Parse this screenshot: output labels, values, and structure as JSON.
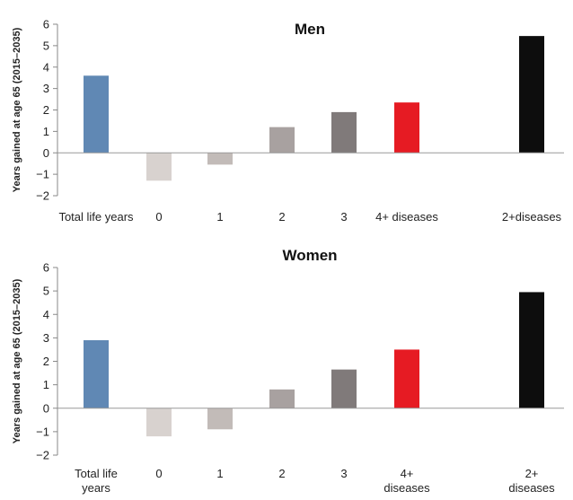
{
  "chart_data": [
    {
      "type": "bar",
      "title": "Men",
      "ylabel": "Years gained at age 65 (2015–2035)",
      "ylim": [
        -2,
        6
      ],
      "yticks": [
        -2,
        -1,
        0,
        1,
        2,
        3,
        4,
        5,
        6
      ],
      "categories": [
        [
          "Total life years"
        ],
        [
          "0"
        ],
        [
          "1"
        ],
        [
          "2"
        ],
        [
          "3"
        ],
        [
          "4+ diseases"
        ],
        [
          "2+diseases"
        ]
      ],
      "values": [
        3.6,
        -1.3,
        -0.55,
        1.2,
        1.9,
        2.35,
        5.45
      ],
      "colors": [
        "#6088b4",
        "#d8d2cf",
        "#c2bbb8",
        "#a8a1a0",
        "#807a7a",
        "#e61b23",
        "#0d0d0d"
      ]
    },
    {
      "type": "bar",
      "title": "Women",
      "ylabel": "Years gained at age 65 (2015–2035)",
      "ylim": [
        -2,
        6
      ],
      "yticks": [
        -2,
        -1,
        0,
        1,
        2,
        3,
        4,
        5,
        6
      ],
      "categories": [
        [
          "Total life",
          "years"
        ],
        [
          "0"
        ],
        [
          "1"
        ],
        [
          "2"
        ],
        [
          "3"
        ],
        [
          "4+",
          "diseases"
        ],
        [
          "2+",
          "diseases"
        ]
      ],
      "values": [
        2.9,
        -1.2,
        -0.9,
        0.8,
        1.65,
        2.5,
        4.95
      ],
      "colors": [
        "#6088b4",
        "#d8d2cf",
        "#c2bbb8",
        "#a8a1a0",
        "#807a7a",
        "#e61b23",
        "#0d0d0d"
      ]
    }
  ]
}
